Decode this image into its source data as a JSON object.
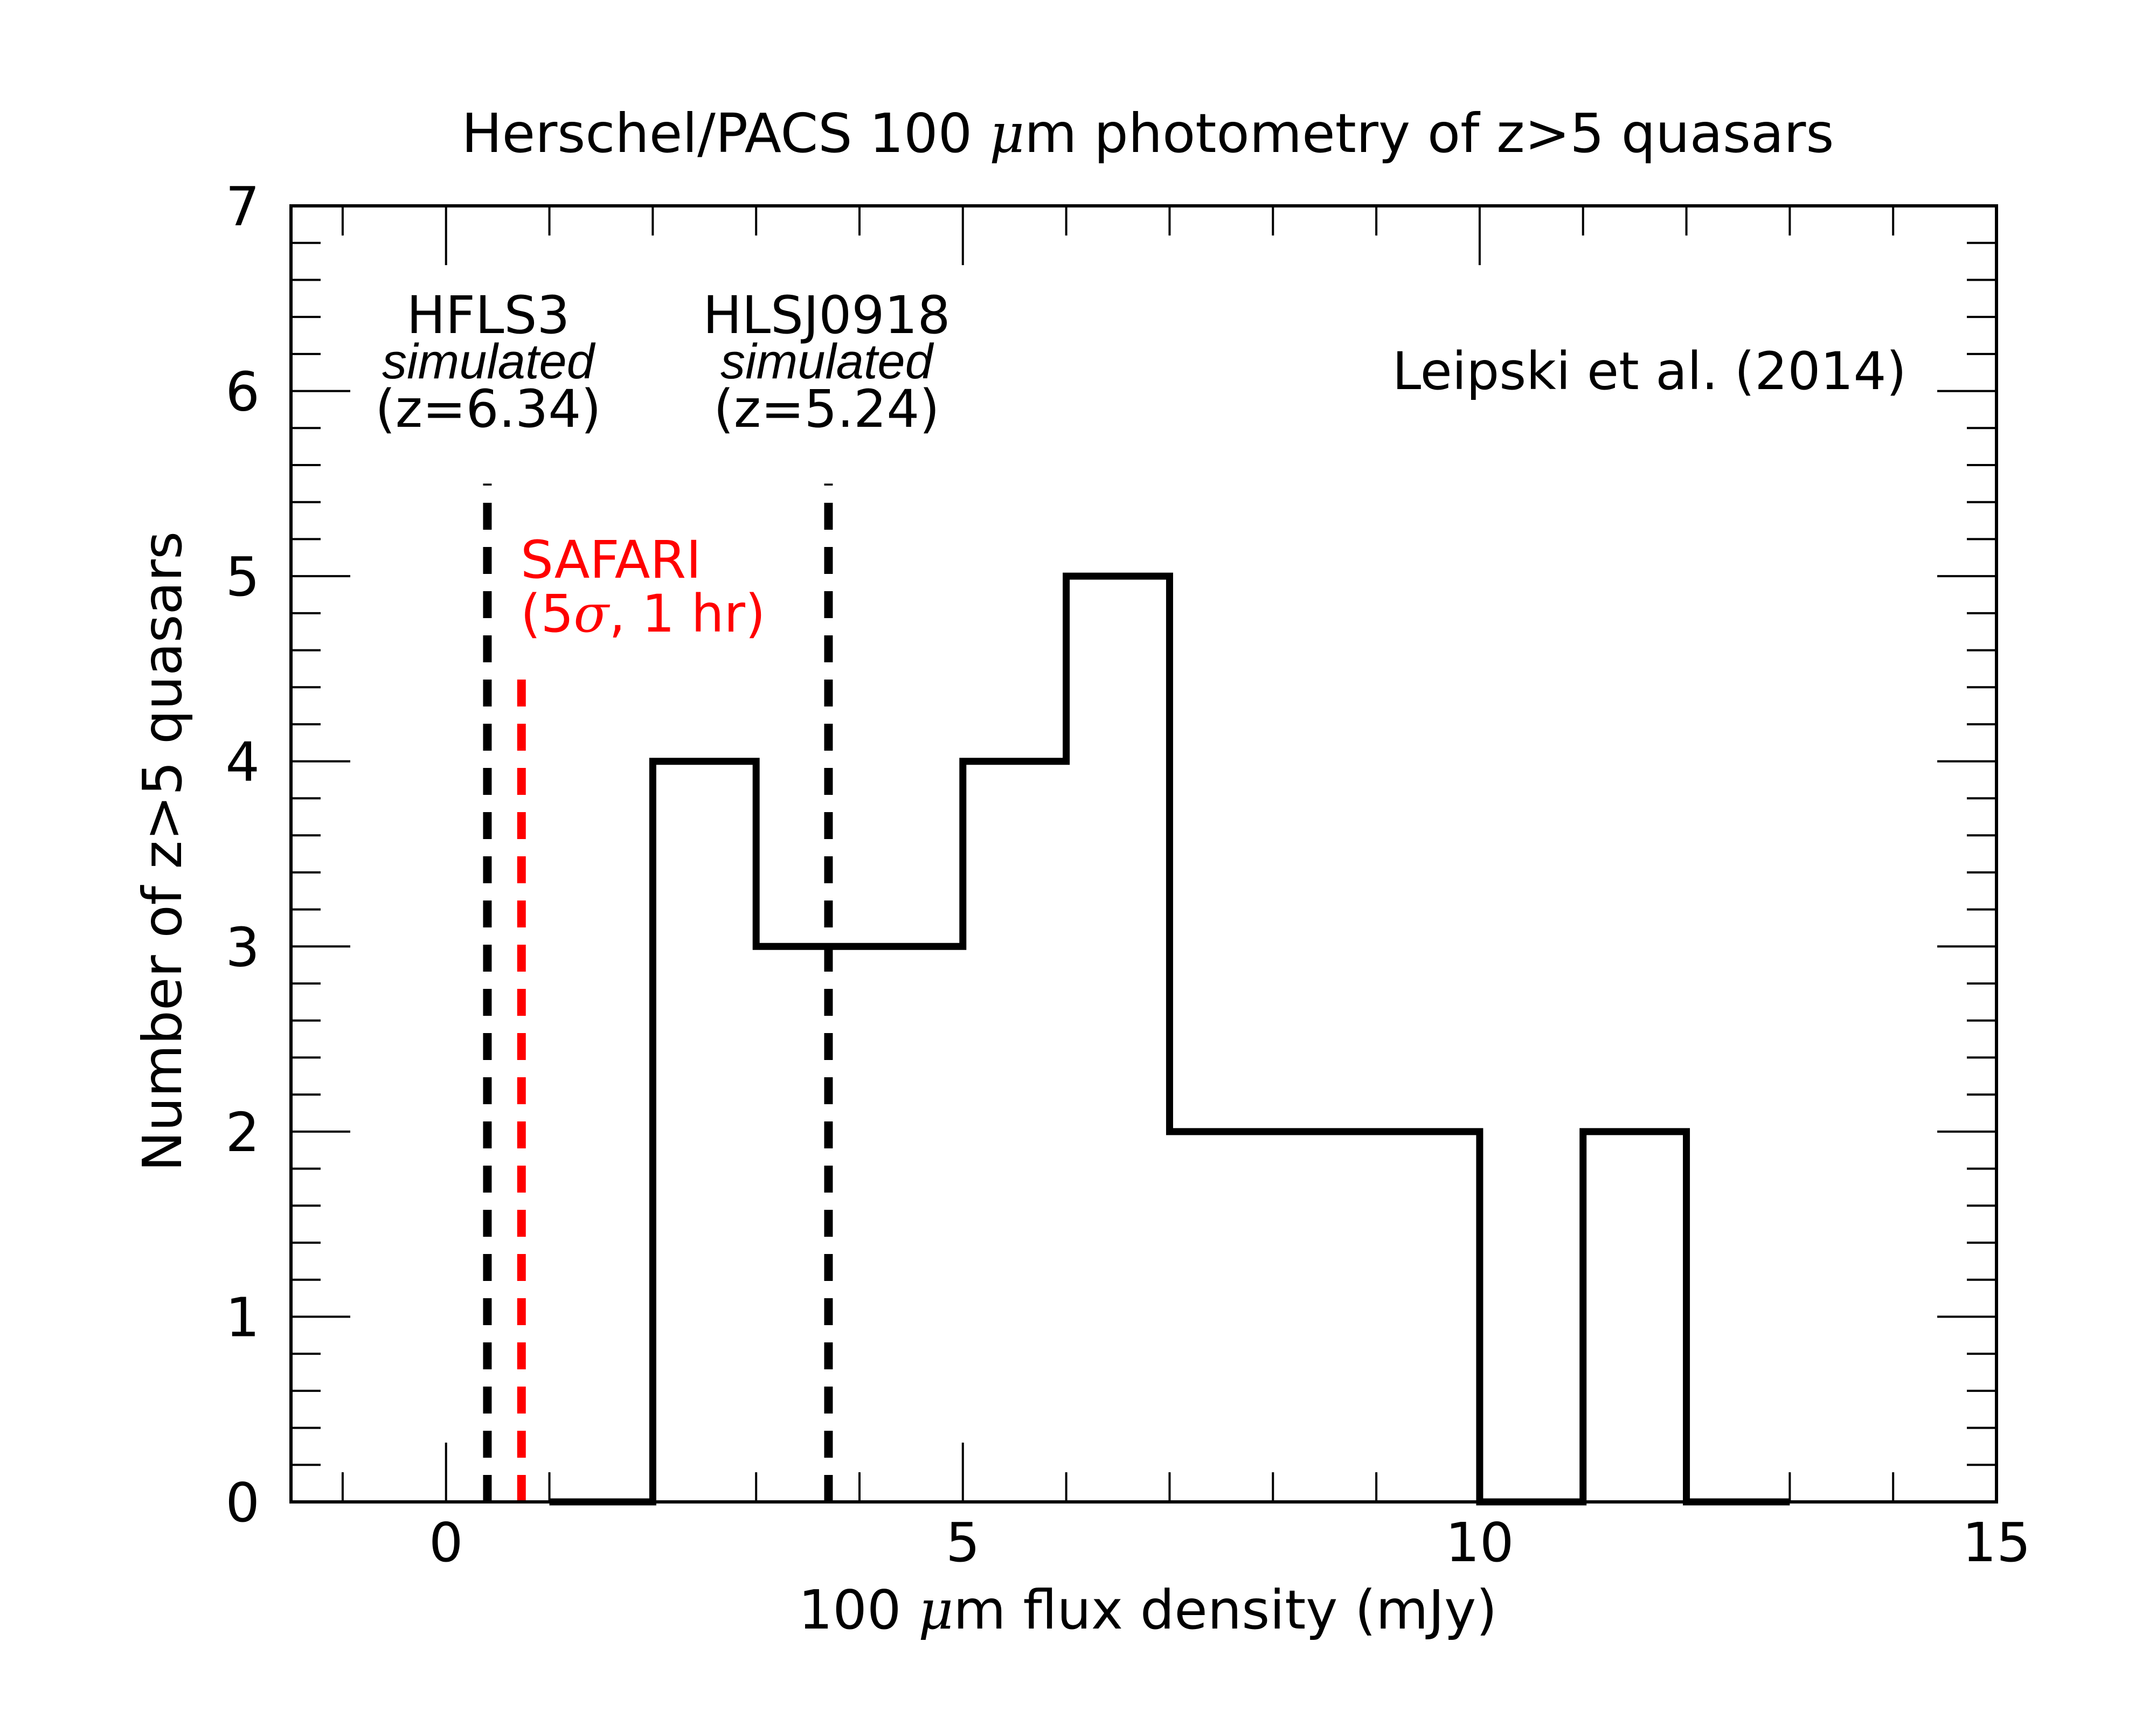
{
  "chart_data": {
    "type": "histogram",
    "title_parts": [
      "Herschel/PACS 100 ",
      "μ",
      "m photometry of z>5 quasars"
    ],
    "xlabel_parts": [
      "100 ",
      "μ",
      "m flux density (mJy)"
    ],
    "ylabel": "Number of z>5 quasars",
    "xlim": [
      -1.5,
      15
    ],
    "ylim": [
      0,
      7
    ],
    "x_ticks": [
      0,
      5,
      10,
      15
    ],
    "y_ticks": [
      0,
      1,
      2,
      3,
      4,
      5,
      6,
      7
    ],
    "x_minor_step": 1,
    "y_minor_step": 0.2,
    "bins": [
      {
        "x0": 1,
        "x1": 2,
        "count": 0
      },
      {
        "x0": 2,
        "x1": 3,
        "count": 4
      },
      {
        "x0": 3,
        "x1": 4,
        "count": 3
      },
      {
        "x0": 4,
        "x1": 5,
        "count": 3
      },
      {
        "x0": 5,
        "x1": 6,
        "count": 4
      },
      {
        "x0": 6,
        "x1": 7,
        "count": 5
      },
      {
        "x0": 7,
        "x1": 8,
        "count": 2
      },
      {
        "x0": 8,
        "x1": 9,
        "count": 2
      },
      {
        "x0": 9,
        "x1": 10,
        "count": 2
      },
      {
        "x0": 10,
        "x1": 11,
        "count": 0
      },
      {
        "x0": 11,
        "x1": 12,
        "count": 2
      },
      {
        "x0": 12,
        "x1": 13,
        "count": 0
      }
    ],
    "vlines": [
      {
        "x": 0.4,
        "y_top": 5.5,
        "color": "#000000",
        "style": "dashed"
      },
      {
        "x": 0.73,
        "y_top": 4.5,
        "color": "#ff0000",
        "style": "dashed"
      },
      {
        "x": 3.7,
        "y_top": 5.5,
        "color": "#000000",
        "style": "dashed"
      }
    ],
    "annotations": {
      "hfls3": {
        "name": "HFLS3",
        "sim": "simulated",
        "z": "(z=6.34)"
      },
      "hlsj": {
        "name": "HLSJ0918",
        "sim": "simulated",
        "z": "(z=5.24)"
      },
      "safari": {
        "line1": "SAFARI",
        "line2_parts": [
          "(5",
          "σ",
          ", 1 hr)"
        ],
        "color": "#ff0000"
      },
      "ref": "Leipski et al. (2014)"
    }
  }
}
